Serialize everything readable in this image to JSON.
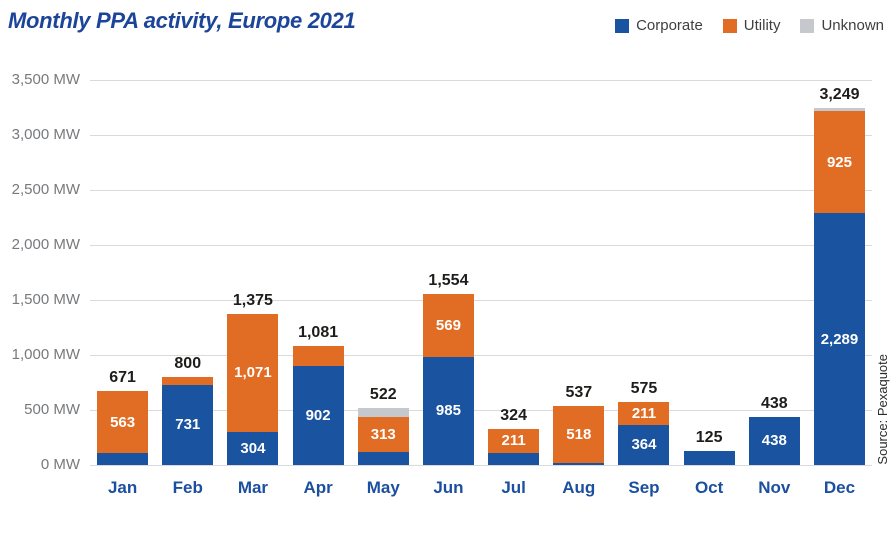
{
  "title": "Monthly PPA activity, Europe 2021",
  "source": "Source: Pexaquote",
  "colors": {
    "corporate": "#1a539f",
    "utility": "#e16d24",
    "unknown": "#c5c9cd",
    "title_blue": "#1c4499",
    "month_blue": "#1c4f9f",
    "gridline": "#d9dadb"
  },
  "legend": [
    {
      "label": "Corporate",
      "color": "#1a539f"
    },
    {
      "label": "Utility",
      "color": "#e16d24"
    },
    {
      "label": "Unknown",
      "color": "#c5c9cd"
    }
  ],
  "chart_data": {
    "type": "bar",
    "stacked": true,
    "title": "Monthly PPA activity, Europe 2021",
    "unit": "MW",
    "ylim": [
      0,
      3500
    ],
    "grid": true,
    "legend_position": "top-right",
    "y_tick_labels": [
      "3,500 MW",
      "3,000 MW",
      "2,500 MW",
      "2,000 MW",
      "1,500 MW",
      "1,000 MW",
      "500 MW",
      "0 MW"
    ],
    "categories": [
      "Jan",
      "Feb",
      "Mar",
      "Apr",
      "May",
      "Jun",
      "Jul",
      "Aug",
      "Sep",
      "Oct",
      "Nov",
      "Dec"
    ],
    "series": [
      {
        "name": "Corporate",
        "color": "#1a539f",
        "values": [
          108,
          731,
          304,
          902,
          120,
          985,
          113,
          19,
          364,
          125,
          438,
          2289
        ]
      },
      {
        "name": "Utility",
        "color": "#e16d24",
        "values": [
          563,
          69,
          1071,
          179,
          313,
          569,
          211,
          518,
          211,
          0,
          0,
          925
        ]
      },
      {
        "name": "Unknown",
        "color": "#c5c9cd",
        "values": [
          0,
          0,
          0,
          0,
          89,
          0,
          0,
          0,
          0,
          0,
          0,
          35
        ]
      }
    ],
    "totals": [
      671,
      800,
      1375,
      1081,
      522,
      1554,
      324,
      537,
      575,
      125,
      438,
      3249
    ],
    "total_labels": [
      "671",
      "800",
      "1,375",
      "1,081",
      "522",
      "1,554",
      "324",
      "537",
      "575",
      "125",
      "438",
      "3,249"
    ],
    "segment_labels": {
      "Corporate": [
        "",
        "731",
        "304",
        "902",
        "",
        "985",
        "",
        "",
        "364",
        "",
        "438",
        "2,289"
      ],
      "Utility": [
        "563",
        "",
        "1,071",
        "",
        "313",
        "569",
        "211",
        "518",
        "211",
        "",
        "",
        "925"
      ],
      "Unknown": [
        "",
        "",
        "",
        "",
        "",
        "",
        "",
        "",
        "",
        "",
        "",
        ""
      ]
    }
  }
}
